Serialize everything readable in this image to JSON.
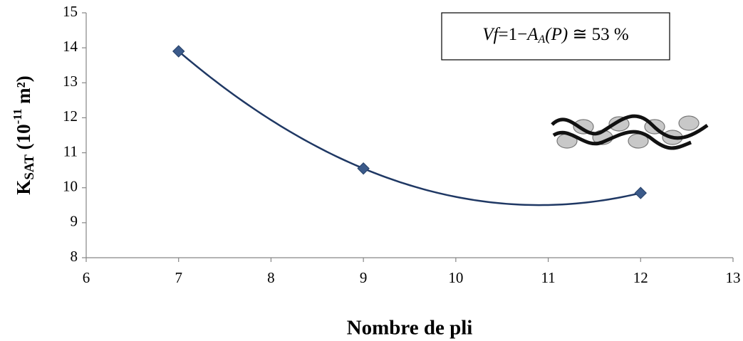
{
  "chart_data": {
    "type": "scatter",
    "x_label": "Nombre de pli",
    "y_label_parts": [
      "K",
      "SAT",
      " (10",
      "-11",
      " m²)"
    ],
    "annotation_parts": [
      "Vf",
      "=1−",
      "A",
      "A",
      "(P)",
      " ≅ 53 %"
    ],
    "series": [
      {
        "color": "#3b5a8a",
        "x": [
          7,
          9,
          12
        ],
        "values": [
          13.9,
          10.55,
          9.85
        ]
      }
    ],
    "trend_color": "#1f3864",
    "xlim": [
      6,
      13
    ],
    "xticks": [
      6,
      7,
      8,
      9,
      10,
      11,
      12,
      13
    ],
    "ylim": [
      8,
      15
    ],
    "yticks": [
      8,
      9,
      10,
      11,
      12,
      13,
      14,
      15
    ],
    "grid": false
  }
}
